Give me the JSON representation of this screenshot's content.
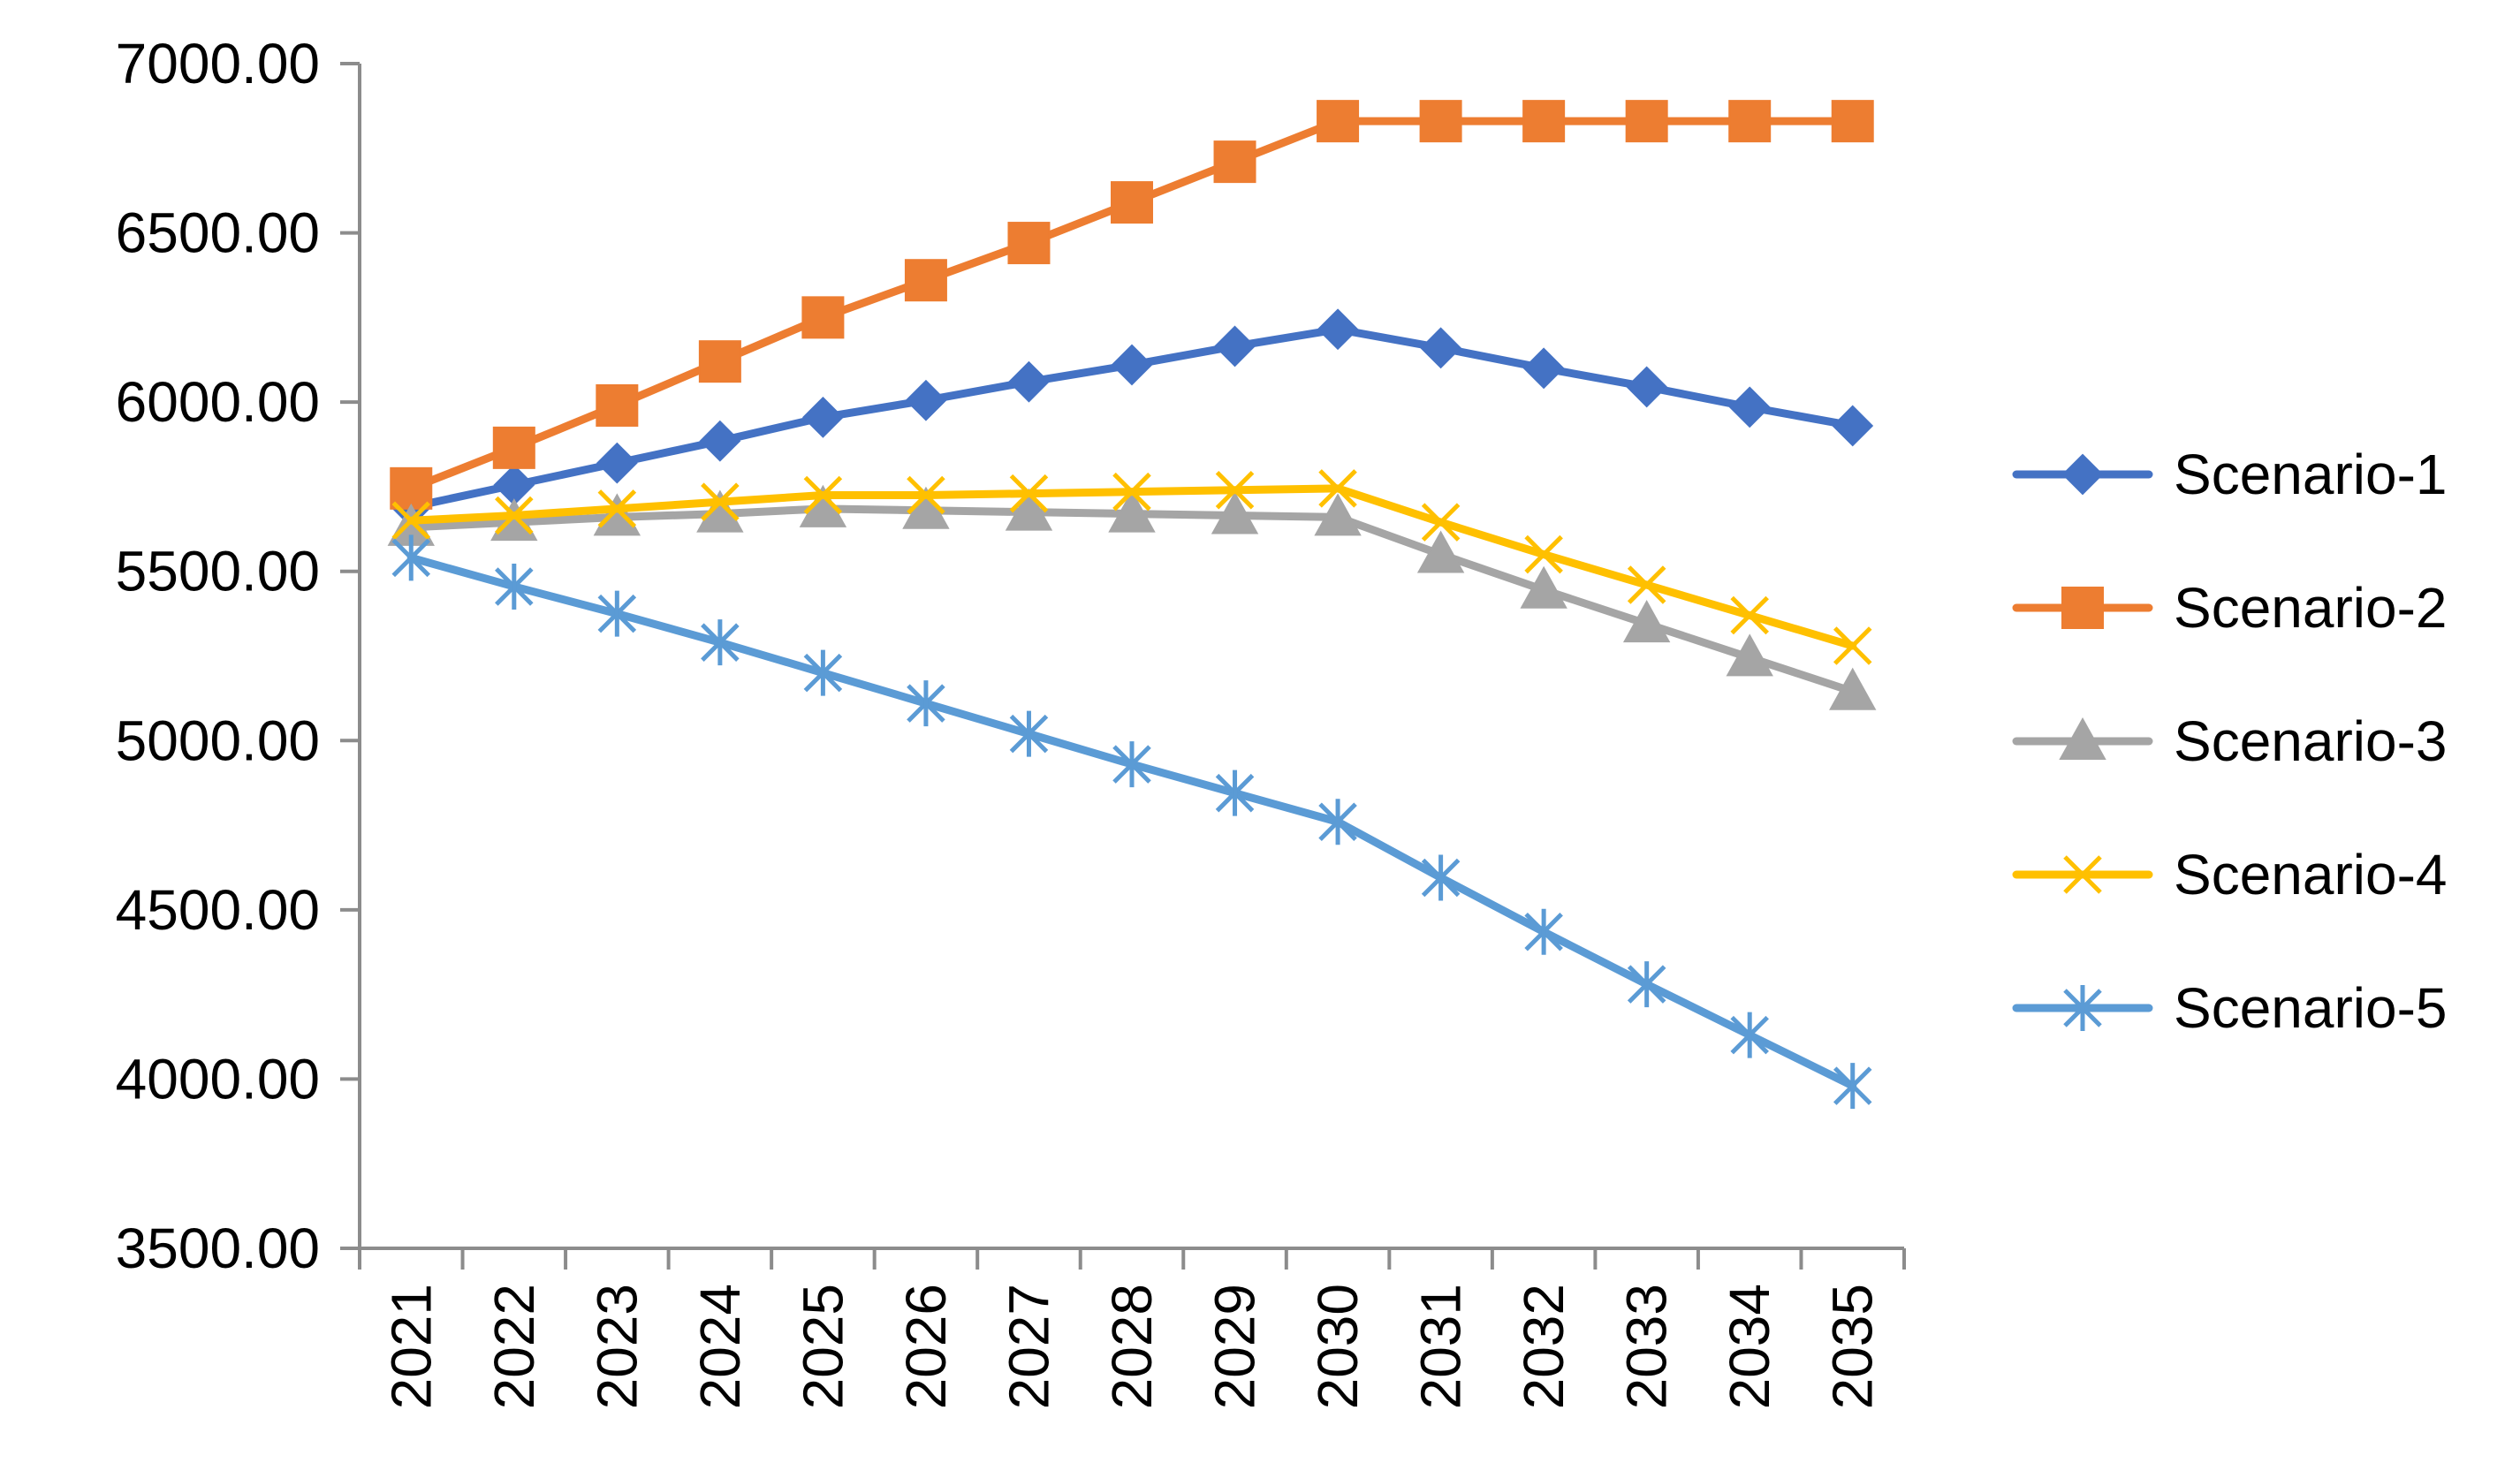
{
  "chart_data": {
    "type": "line",
    "title": "",
    "xlabel": "",
    "ylabel": "",
    "ylim": [
      3500,
      7000
    ],
    "y_ticks": [
      "3500.00",
      "4000.00",
      "4500.00",
      "5000.00",
      "5500.00",
      "6000.00",
      "6500.00",
      "7000.00"
    ],
    "grid": false,
    "legend_position": "right",
    "categories": [
      "2021",
      "2022",
      "2023",
      "2024",
      "2025",
      "2026",
      "2027",
      "2028",
      "2029",
      "2030",
      "2031",
      "2032",
      "2033",
      "2034",
      "2035"
    ],
    "series": [
      {
        "name": "Scenario-1",
        "color": "#4472C4",
        "marker": "diamond",
        "values": [
          5690,
          5755,
          5820,
          5885,
          5955,
          6005,
          6060,
          6110,
          6165,
          6215,
          6160,
          6100,
          6045,
          5985,
          5930
        ]
      },
      {
        "name": "Scenario-2",
        "color": "#ED7D31",
        "marker": "square",
        "values": [
          5745,
          5865,
          5990,
          6120,
          6250,
          6360,
          6470,
          6590,
          6710,
          6830,
          6830,
          6830,
          6830,
          6830,
          6830
        ]
      },
      {
        "name": "Scenario-3",
        "color": "#A5A5A5",
        "marker": "triangle",
        "values": [
          5630,
          5645,
          5660,
          5670,
          5685,
          5680,
          5675,
          5670,
          5665,
          5660,
          5550,
          5445,
          5345,
          5245,
          5145
        ]
      },
      {
        "name": "Scenario-4",
        "color": "#FFC000",
        "marker": "x",
        "values": [
          5650,
          5665,
          5685,
          5705,
          5725,
          5725,
          5730,
          5735,
          5740,
          5745,
          5645,
          5550,
          5460,
          5370,
          5280
        ]
      },
      {
        "name": "Scenario-5",
        "color": "#5B9BD5",
        "marker": "asterisk",
        "values": [
          5540,
          5455,
          5375,
          5290,
          5200,
          5110,
          5020,
          4930,
          4845,
          4760,
          4595,
          4435,
          4280,
          4130,
          3980
        ]
      }
    ]
  }
}
